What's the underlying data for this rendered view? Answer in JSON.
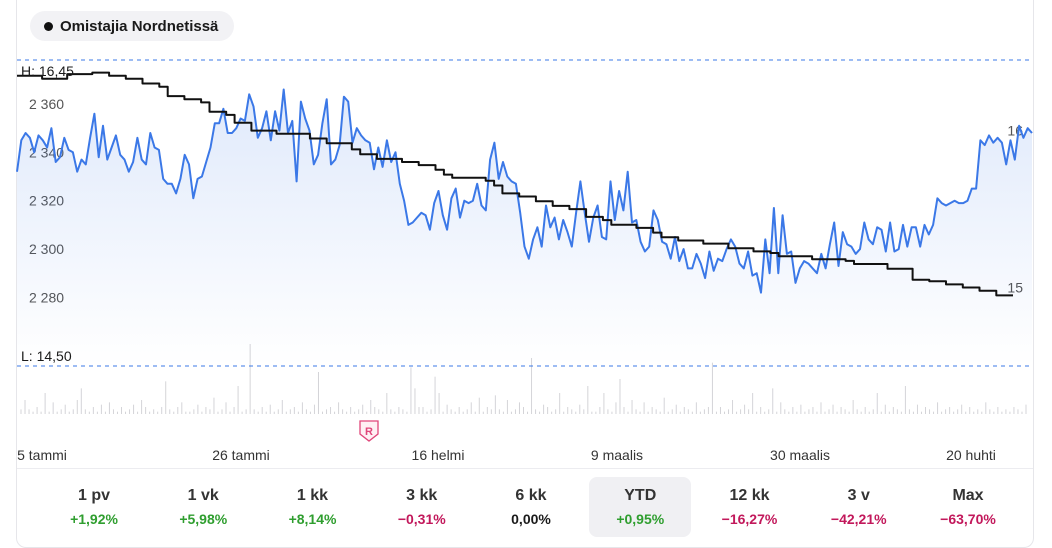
{
  "legend": {
    "label": "Omistajia Nordnetissä",
    "icon": "dot-icon"
  },
  "chart_data": {
    "type": "line",
    "high_label": "H: 16,45",
    "low_label": "L: 14,50",
    "left_axis": {
      "ticks": [
        "2 360",
        "2 340",
        "2 320",
        "2 300",
        "2 280"
      ],
      "range": [
        2280,
        2375
      ]
    },
    "right_axis": {
      "ticks": [
        "16",
        "15"
      ],
      "range": [
        14.5,
        16.45
      ]
    },
    "x_tick_labels": [
      "5 tammi",
      "26 tammi",
      "16 helmi",
      "9 maalis",
      "30 maalis",
      "20 huhti"
    ],
    "grid": false,
    "series": [
      {
        "axis": "left",
        "color": "#3b78e7",
        "values": [
          2332,
          2345,
          2348,
          2346,
          2340,
          2347,
          2345,
          2342,
          2350,
          2336,
          2338,
          2346,
          2341,
          2340,
          2332,
          2337,
          2335,
          2346,
          2356,
          2338,
          2351,
          2337,
          2342,
          2347,
          2339,
          2337,
          2332,
          2336,
          2346,
          2337,
          2335,
          2348,
          2342,
          2341,
          2329,
          2327,
          2327,
          2323,
          2329,
          2339,
          2335,
          2321,
          2329,
          2330,
          2336,
          2342,
          2352,
          2352,
          2358,
          2348,
          2348,
          2350,
          2354,
          2353,
          2364,
          2359,
          2346,
          2350,
          2357,
          2345,
          2357,
          2349,
          2366,
          2348,
          2353,
          2328,
          2361,
          2354,
          2349,
          2335,
          2339,
          2352,
          2362,
          2335,
          2337,
          2343,
          2363,
          2361,
          2344,
          2350,
          2347,
          2345,
          2344,
          2333,
          2342,
          2334,
          2345,
          2336,
          2340,
          2327,
          2320,
          2310,
          2311,
          2313,
          2315,
          2314,
          2308,
          2319,
          2324,
          2314,
          2308,
          2321,
          2325,
          2313,
          2320,
          2319,
          2320,
          2327,
          2318,
          2316,
          2337,
          2344,
          2329,
          2336,
          2330,
          2328,
          2327,
          2315,
          2301,
          2296,
          2304,
          2309,
          2301,
          2318,
          2309,
          2313,
          2304,
          2312,
          2307,
          2301,
          2315,
          2328,
          2315,
          2303,
          2313,
          2318,
          2305,
          2304,
          2328,
          2312,
          2324,
          2316,
          2332,
          2311,
          2312,
          2303,
          2299,
          2301,
          2316,
          2312,
          2303,
          2302,
          2296,
          2305,
          2295,
          2300,
          2292,
          2292,
          2298,
          2294,
          2288,
          2299,
          2291,
          2296,
          2295,
          2300,
          2304,
          2301,
          2294,
          2292,
          2299,
          2289,
          2290,
          2282,
          2304,
          2290,
          2317,
          2290,
          2314,
          2298,
          2299,
          2286,
          2292,
          2295,
          2294,
          2292,
          2290,
          2298,
          2292,
          2302,
          2311,
          2293,
          2307,
          2302,
          2301,
          2298,
          2300,
          2311,
          2304,
          2302,
          2309,
          2308,
          2299,
          2311,
          2299,
          2300,
          2310,
          2301,
          2309,
          2309,
          2301,
          2310,
          2306,
          2310,
          2321,
          2319,
          2318,
          2319,
          2320,
          2319,
          2319,
          2320,
          2325,
          2325,
          2345,
          2343,
          2347,
          2344,
          2346,
          2344,
          2335,
          2345,
          2337,
          2351,
          2346,
          2350,
          2348
        ]
      },
      {
        "axis": "right",
        "color": "#111111",
        "values": [
          16.35,
          16.35,
          16.35,
          16.33,
          16.33,
          16.33,
          16.36,
          16.36,
          16.36,
          16.37,
          16.37,
          16.35,
          16.35,
          16.33,
          16.33,
          16.3,
          16.3,
          16.28,
          16.22,
          16.22,
          16.2,
          16.2,
          16.18,
          16.12,
          16.12,
          16.1,
          16.05,
          16.05,
          16.0,
          16.0,
          16.0,
          15.98,
          15.98,
          15.98,
          15.98,
          15.95,
          15.95,
          15.92,
          15.92,
          15.92,
          15.88,
          15.85,
          15.85,
          15.82,
          15.82,
          15.82,
          15.8,
          15.8,
          15.78,
          15.78,
          15.75,
          15.72,
          15.7,
          15.7,
          15.7,
          15.7,
          15.68,
          15.65,
          15.6,
          15.6,
          15.58,
          15.58,
          15.55,
          15.55,
          15.52,
          15.52,
          15.5,
          15.5,
          15.45,
          15.45,
          15.43,
          15.4,
          15.4,
          15.4,
          15.38,
          15.38,
          15.35,
          15.32,
          15.32,
          15.3,
          15.3,
          15.3,
          15.28,
          15.28,
          15.28,
          15.25,
          15.25,
          15.25,
          15.23,
          15.23,
          15.22,
          15.2,
          15.2,
          15.2,
          15.2,
          15.18,
          15.18,
          15.18,
          15.18,
          15.17,
          15.15,
          15.15,
          15.15,
          15.15,
          15.12,
          15.12,
          15.12,
          15.05,
          15.05,
          15.04,
          15.04,
          15.02,
          15.02,
          15.0,
          15.0,
          14.98,
          14.98,
          14.95,
          14.95,
          14.95
        ]
      }
    ],
    "volume": [
      2,
      6,
      2,
      1,
      3,
      1,
      9,
      1,
      5,
      1,
      2,
      4,
      1,
      2,
      6,
      11,
      2,
      1,
      3,
      1,
      4,
      1,
      5,
      2,
      1,
      3,
      1,
      2,
      4,
      1,
      6,
      3,
      1,
      2,
      1,
      3,
      14,
      2,
      1,
      3,
      5,
      1,
      1,
      2,
      4,
      1,
      3,
      2,
      7,
      1,
      2,
      5,
      1,
      3,
      12,
      1,
      2,
      30,
      2,
      1,
      3,
      1,
      4,
      1,
      2,
      6,
      1,
      2,
      3,
      1,
      5,
      2,
      1,
      4,
      18,
      1,
      2,
      3,
      1,
      5,
      2,
      1,
      3,
      1,
      2,
      4,
      1,
      6,
      3,
      2,
      1,
      9,
      2,
      1,
      3,
      2,
      1,
      20,
      11,
      3,
      3,
      1,
      2,
      16,
      9,
      1,
      4,
      2,
      1,
      3,
      1,
      2,
      5,
      1,
      7,
      1,
      3,
      2,
      8,
      2,
      1,
      6,
      1,
      2,
      5,
      3,
      1,
      24,
      2,
      1,
      4,
      3,
      1,
      2,
      9,
      1,
      3,
      2,
      1,
      4,
      2,
      12,
      1,
      1,
      3,
      9,
      2,
      1,
      5,
      15,
      3,
      1,
      6,
      2,
      1,
      5,
      1,
      3,
      2,
      1,
      7,
      1,
      2,
      4,
      1,
      3,
      2,
      1,
      5,
      1,
      2,
      3,
      22,
      1,
      3,
      1,
      2,
      6,
      1,
      2,
      4,
      2,
      9,
      1,
      3,
      1,
      2,
      11,
      1,
      5,
      2,
      1,
      3,
      1,
      4,
      1,
      2,
      3,
      1,
      5,
      1,
      2,
      4,
      1,
      3,
      2,
      1,
      6,
      2,
      1,
      3,
      1,
      2,
      9,
      1,
      4,
      1,
      3,
      2,
      1,
      12,
      2,
      1,
      4,
      1,
      3,
      2,
      1,
      5,
      1,
      2,
      3,
      1,
      2,
      4,
      1,
      3,
      1,
      2,
      1,
      5,
      2,
      1,
      3,
      1,
      2,
      1,
      3,
      2,
      1,
      4
    ]
  },
  "periods": [
    {
      "label": "1 pv",
      "value": "+1,92%",
      "tone": "pos"
    },
    {
      "label": "1 vk",
      "value": "+5,98%",
      "tone": "pos"
    },
    {
      "label": "1 kk",
      "value": "+8,14%",
      "tone": "pos"
    },
    {
      "label": "3 kk",
      "value": "−0,31%",
      "tone": "neg"
    },
    {
      "label": "6 kk",
      "value": "0,00%",
      "tone": "neu"
    },
    {
      "label": "YTD",
      "value": "+0,95%",
      "tone": "pos",
      "active": true
    },
    {
      "label": "12 kk",
      "value": "−16,27%",
      "tone": "neg"
    },
    {
      "label": "3 v",
      "value": "−42,21%",
      "tone": "neg"
    },
    {
      "label": "Max",
      "value": "−63,70%",
      "tone": "neg"
    }
  ],
  "colors": {
    "blue": "#3b78e7",
    "black": "#111111",
    "marker": "#e0467a",
    "positive": "#2f9e2f",
    "negative": "#c2185b"
  },
  "marker": {
    "label": "R",
    "icon": "report-marker-icon"
  }
}
